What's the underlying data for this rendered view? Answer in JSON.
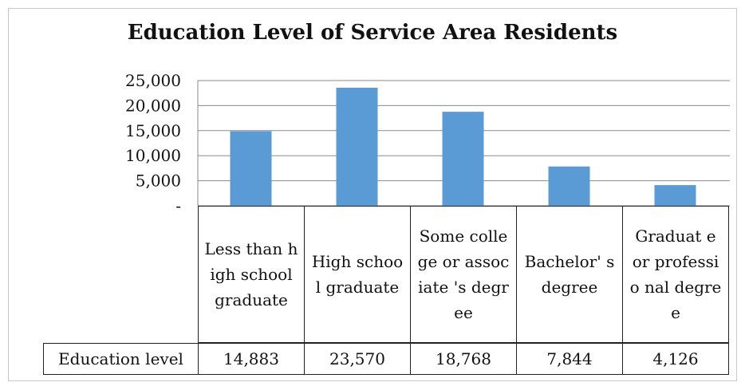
{
  "chart_data": {
    "type": "bar",
    "title": "Education Level of Service Area Residents",
    "categories": [
      "Less than high school graduate",
      "High school graduate",
      "Some college or associate 's degree",
      "Bachelor' s degree",
      "Graduat e or professio nal degree"
    ],
    "values": [
      14883,
      23570,
      18768,
      7844,
      4126
    ],
    "value_labels": [
      "14,883",
      "23,570",
      "18,768",
      "7,844",
      "4,126"
    ],
    "series": [
      {
        "name": "Education level",
        "values": [
          14883,
          23570,
          18768,
          7844,
          4126
        ]
      }
    ],
    "y_ticks": [
      "25,000",
      "20,000",
      "15,000",
      "10,000",
      "5,000",
      "-"
    ],
    "ylim": [
      0,
      25000
    ],
    "grid": true,
    "bar_color": "#5b9bd5",
    "legend": "data table below chart",
    "table_row_label": "Education level"
  }
}
